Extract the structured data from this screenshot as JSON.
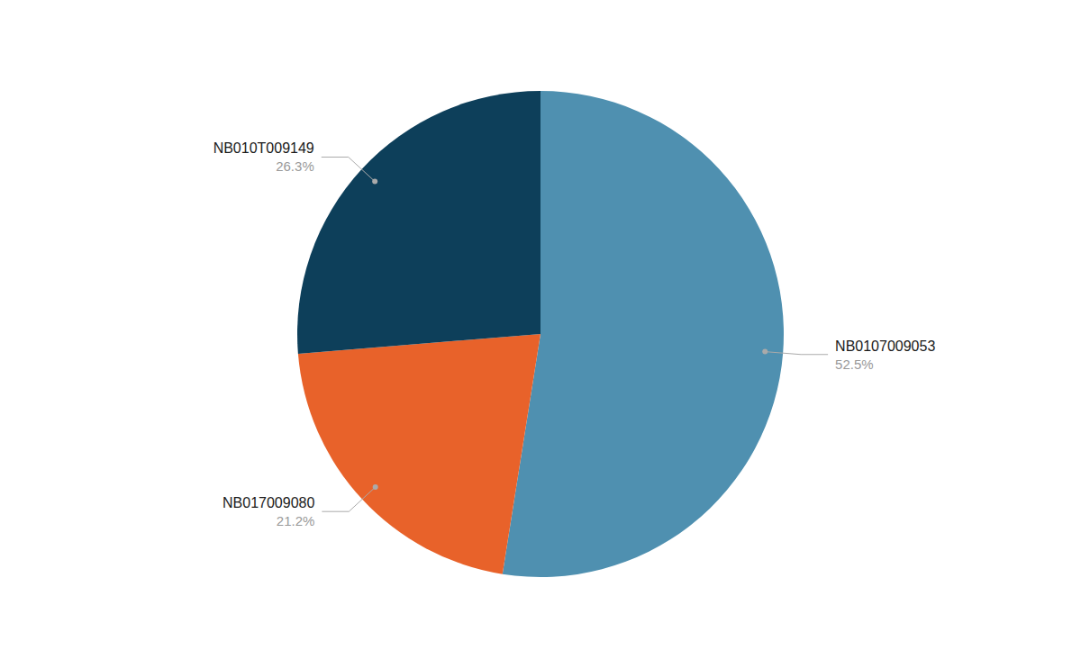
{
  "chart_data": {
    "type": "pie",
    "categories": [
      "NB0107009053",
      "NB017009080",
      "NB010T009149"
    ],
    "values": [
      52.5,
      21.2,
      26.3
    ],
    "value_labels": [
      "52.5%",
      "21.2%",
      "26.3%"
    ],
    "colors": [
      "#4f90b0",
      "#e8622a",
      "#0d3f5a"
    ],
    "data_labels": true
  }
}
